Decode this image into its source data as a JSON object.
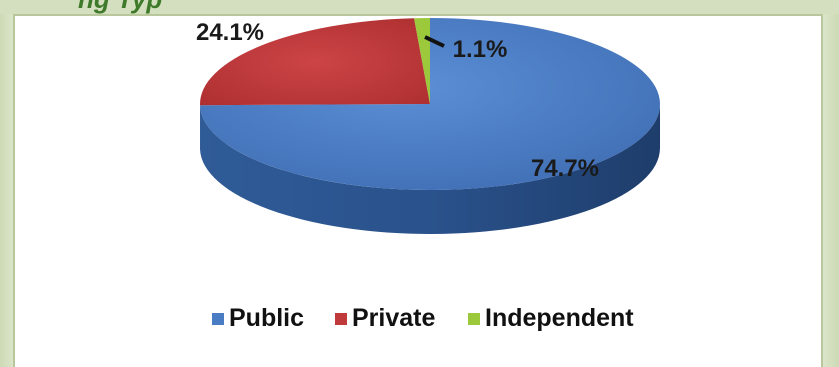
{
  "title": "ng                     Typ",
  "chart_data": {
    "type": "pie",
    "style": "3d",
    "categories": [
      "Public",
      "Private",
      "Independent"
    ],
    "values": [
      74.7,
      24.1,
      1.1
    ],
    "data_labels": [
      "74.7%",
      "24.1%",
      "1.1%"
    ],
    "colors": [
      "#4a7cc4",
      "#c0393b",
      "#9cc83c"
    ],
    "legend_position": "bottom",
    "legend": [
      "Public",
      "Private",
      "Independent"
    ]
  }
}
